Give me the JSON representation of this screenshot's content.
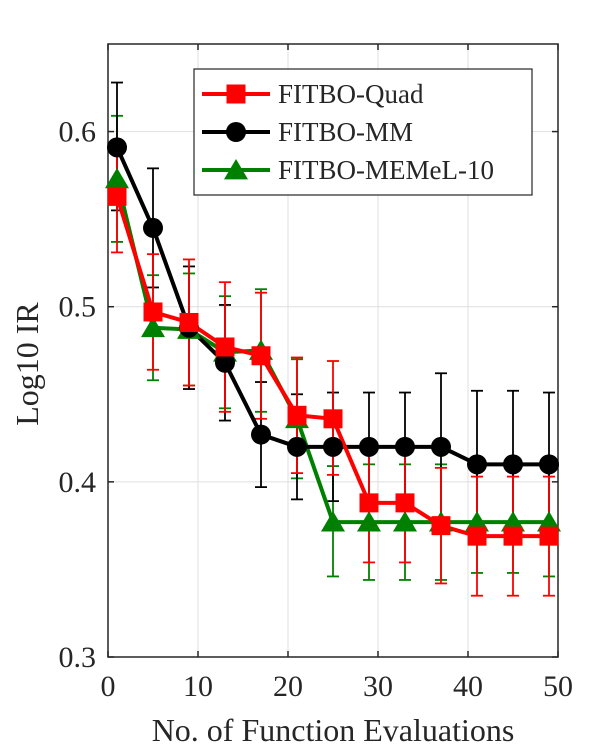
{
  "chart_data": {
    "type": "line",
    "title": "",
    "xlabel": "No. of Function Evaluations",
    "ylabel": "Log10 IR",
    "xlim": [
      0,
      50
    ],
    "ylim": [
      0.3,
      0.65
    ],
    "xticks": [
      0,
      10,
      20,
      30,
      40,
      50
    ],
    "yticks": [
      0.3,
      0.4,
      0.5,
      0.6
    ],
    "xtick_labels": [
      "0",
      "10",
      "20",
      "30",
      "40",
      "50"
    ],
    "ytick_labels": [
      "0.3",
      "0.4",
      "0.5",
      "0.6"
    ],
    "grid": true,
    "legend_position": "top-right",
    "x": [
      1,
      5,
      9,
      13,
      17,
      21,
      25,
      29,
      33,
      37,
      41,
      45,
      49
    ],
    "series": [
      {
        "name": "FITBO-Quad",
        "color": "#ff0000",
        "marker": "square",
        "y": [
          0.563,
          0.497,
          0.491,
          0.477,
          0.472,
          0.438,
          0.436,
          0.388,
          0.388,
          0.375,
          0.369,
          0.369,
          0.369
        ],
        "y_lower": [
          0.531,
          0.464,
          0.455,
          0.44,
          0.436,
          0.405,
          0.404,
          0.354,
          0.354,
          0.342,
          0.335,
          0.335,
          0.335
        ],
        "y_upper": [
          0.595,
          0.53,
          0.527,
          0.514,
          0.508,
          0.471,
          0.469,
          0.421,
          0.421,
          0.408,
          0.403,
          0.403,
          0.403
        ]
      },
      {
        "name": "FITBO-MM",
        "color": "#000000",
        "marker": "circle",
        "y": [
          0.591,
          0.545,
          0.488,
          0.468,
          0.427,
          0.42,
          0.42,
          0.42,
          0.42,
          0.42,
          0.41,
          0.41,
          0.41
        ],
        "y_lower": [
          0.555,
          0.511,
          0.453,
          0.435,
          0.397,
          0.39,
          0.389,
          0.388,
          0.388,
          0.378,
          0.368,
          0.368,
          0.368
        ],
        "y_upper": [
          0.628,
          0.579,
          0.523,
          0.501,
          0.457,
          0.45,
          0.451,
          0.451,
          0.451,
          0.462,
          0.452,
          0.452,
          0.451
        ]
      },
      {
        "name": "FITBO-MEMeL-10",
        "color": "#008000",
        "marker": "triangle",
        "y": [
          0.573,
          0.488,
          0.487,
          0.474,
          0.475,
          0.436,
          0.377,
          0.377,
          0.377,
          0.377,
          0.377,
          0.377,
          0.377
        ],
        "y_lower": [
          0.537,
          0.458,
          0.455,
          0.442,
          0.44,
          0.402,
          0.346,
          0.344,
          0.344,
          0.344,
          0.348,
          0.348,
          0.346
        ],
        "y_upper": [
          0.609,
          0.518,
          0.519,
          0.506,
          0.51,
          0.47,
          0.409,
          0.41,
          0.41,
          0.41,
          0.406,
          0.406,
          0.409
        ]
      }
    ]
  }
}
